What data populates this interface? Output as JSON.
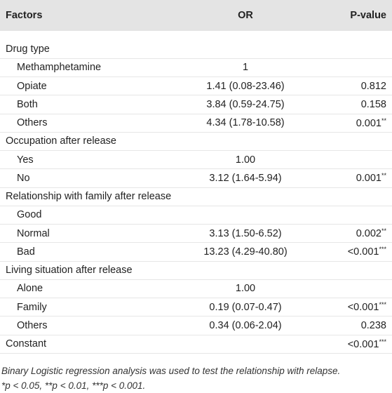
{
  "table": {
    "header": [
      "Factors",
      "OR",
      "P-value"
    ],
    "rows": [
      {
        "factor": "Drug type",
        "section": true
      },
      {
        "factor": "Methamphetamine",
        "or": "1"
      },
      {
        "factor": "Opiate",
        "or": "1.41 (0.08-23.46)",
        "p": "0.812"
      },
      {
        "factor": "Both",
        "or": "3.84 (0.59-24.75)",
        "p": "0.158"
      },
      {
        "factor": "Others",
        "or": "4.34 (1.78-10.58)",
        "p": "0.001",
        "stars": "**"
      },
      {
        "factor": "Occupation after release",
        "section": true
      },
      {
        "factor": "Yes",
        "or": "1.00"
      },
      {
        "factor": "No",
        "or": "3.12 (1.64-5.94)",
        "p": "0.001",
        "stars": "**"
      },
      {
        "factor": "Relationship with family after release",
        "section": true
      },
      {
        "factor": "Good"
      },
      {
        "factor": "Normal",
        "or": "3.13 (1.50-6.52)",
        "p": "0.002",
        "stars": "**"
      },
      {
        "factor": "Bad",
        "or": "13.23 (4.29-40.80)",
        "p": "<0.001",
        "stars": "***"
      },
      {
        "factor": "Living situation after release",
        "section": true
      },
      {
        "factor": "Alone",
        "or": "1.00"
      },
      {
        "factor": "Family",
        "or": "0.19 (0.07-0.47)",
        "p": "<0.001",
        "stars": "***"
      },
      {
        "factor": "Others",
        "or": "0.34 (0.06-2.04)",
        "p": "0.238"
      },
      {
        "factor": "Constant",
        "section": true,
        "p": "<0.001",
        "stars": "***"
      }
    ],
    "notes": [
      "Binary Logistic regression analysis was used to test the relationship with relapse.",
      "*p < 0.05, **p < 0.01, ***p < 0.001."
    ]
  }
}
